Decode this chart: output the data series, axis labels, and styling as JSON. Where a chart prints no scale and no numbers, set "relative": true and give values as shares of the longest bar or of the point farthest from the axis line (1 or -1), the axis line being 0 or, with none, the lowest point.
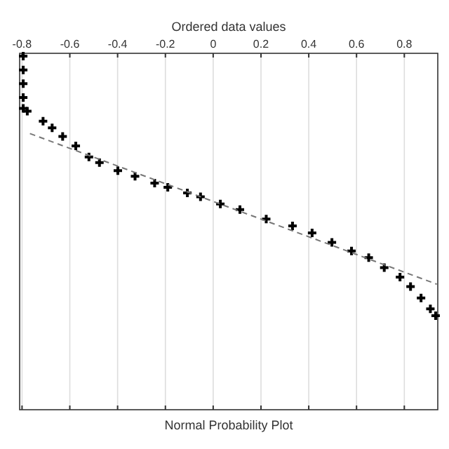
{
  "chart_data": {
    "type": "scatter",
    "title": "Normal Probability Plot",
    "xlabel": "Ordered data values",
    "relative": true,
    "xlim": [
      -0.81,
      0.94
    ],
    "xticks": [
      -0.8,
      -0.6,
      -0.4,
      -0.2,
      0,
      0.2,
      0.4,
      0.6,
      0.8
    ],
    "grid": "x",
    "tick_labels": "x",
    "marker": "cross",
    "series": [
      {
        "color": "#000000",
        "x": [
          -0.795,
          -0.795,
          -0.795,
          -0.795,
          -0.795,
          -0.778,
          -0.712,
          -0.674,
          -0.63,
          -0.575,
          -0.52,
          -0.476,
          -0.399,
          -0.327,
          -0.245,
          -0.19,
          -0.108,
          -0.053,
          0.03,
          0.112,
          0.222,
          0.332,
          0.414,
          0.497,
          0.579,
          0.651,
          0.716,
          0.782,
          0.826,
          0.87,
          0.909,
          0.931
        ],
        "values": [
          1,
          0.961,
          0.922,
          0.883,
          0.852,
          0.844,
          0.816,
          0.797,
          0.773,
          0.746,
          0.715,
          0.699,
          0.676,
          0.66,
          0.641,
          0.629,
          0.613,
          0.602,
          0.582,
          0.566,
          0.539,
          0.52,
          0.5,
          0.473,
          0.449,
          0.43,
          0.402,
          0.375,
          0.348,
          0.316,
          0.285,
          0.266
        ]
      },
      {
        "type": "line",
        "color": "#777777",
        "line_style": "dashed",
        "marker": "none",
        "x": [
          -0.767,
          0.936
        ],
        "values": [
          0.781,
          0.355
        ]
      }
    ]
  }
}
